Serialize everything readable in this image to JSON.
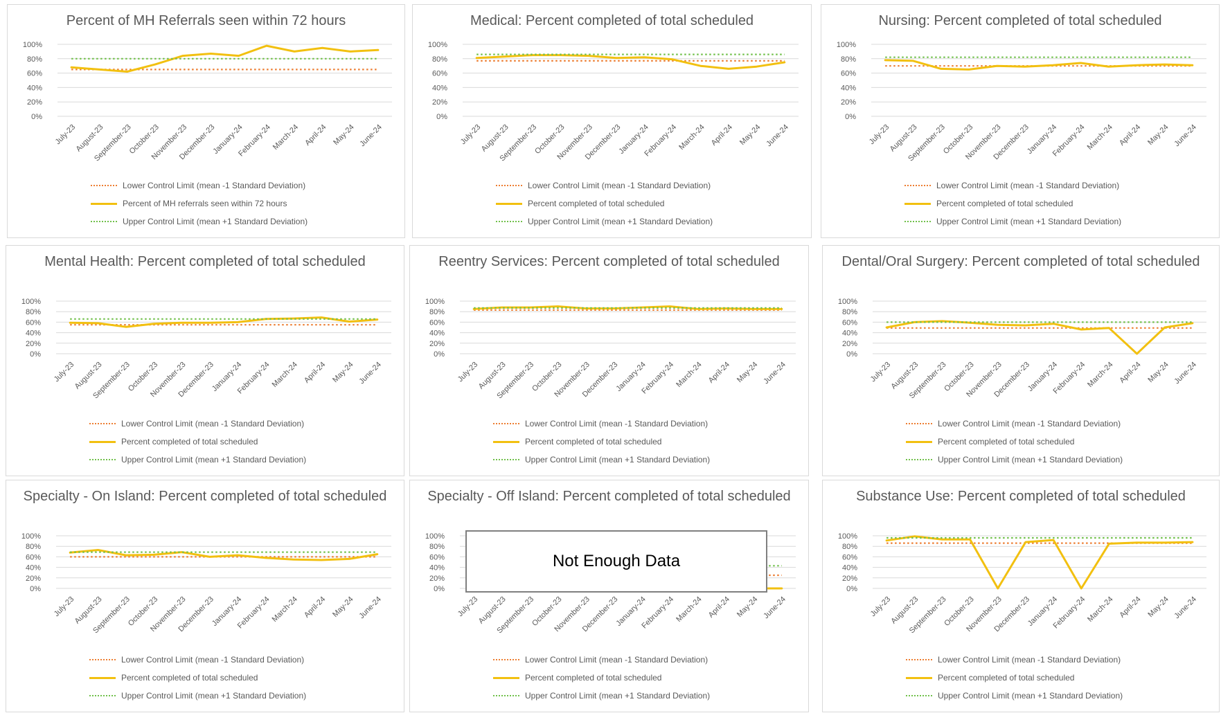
{
  "colors": {
    "actual": "#f2c010",
    "lcl": "#ed7d31",
    "ucl": "#70c04a",
    "grid": "#d9d9d9",
    "text": "#595959"
  },
  "months": [
    "July-23",
    "August-23",
    "September-23",
    "October-23",
    "November-23",
    "December-23",
    "January-24",
    "February-24",
    "March-24",
    "April-24",
    "May-24",
    "June-24"
  ],
  "y_ticks": [
    "100%",
    "80%",
    "60%",
    "40%",
    "20%",
    "0%"
  ],
  "chart_data": [
    {
      "type": "line",
      "title": "Percent of MH Referrals seen within 72 hours",
      "ylim": [
        0,
        100
      ],
      "series": [
        {
          "name": "Lower Control Limit (mean -1 Standard Deviation)",
          "values": [
            65,
            65,
            65,
            65,
            65,
            65,
            65,
            65,
            65,
            65,
            65,
            65
          ]
        },
        {
          "name": "Percent of MH referrals seen within 72 hours",
          "values": [
            68,
            65,
            62,
            72,
            84,
            87,
            84,
            98,
            90,
            95,
            90,
            92
          ]
        },
        {
          "name": "Upper Control Limit (mean +1 Standard Deviation)",
          "values": [
            80,
            80,
            80,
            80,
            80,
            80,
            80,
            80,
            80,
            80,
            80,
            80
          ]
        }
      ]
    },
    {
      "type": "line",
      "title": "Medical: Percent completed of total scheduled",
      "ylim": [
        0,
        100
      ],
      "series": [
        {
          "name": "Lower Control Limit (mean -1 Standard Deviation)",
          "values": [
            77,
            77,
            77,
            77,
            77,
            77,
            77,
            77,
            77,
            77,
            77,
            77
          ]
        },
        {
          "name": "Percent completed of total scheduled",
          "values": [
            81,
            83,
            85,
            85,
            84,
            81,
            82,
            79,
            70,
            66,
            69,
            75
          ]
        },
        {
          "name": "Upper Control Limit (mean +1 Standard Deviation)",
          "values": [
            86,
            86,
            86,
            86,
            86,
            86,
            86,
            86,
            86,
            86,
            86,
            86
          ]
        }
      ]
    },
    {
      "type": "line",
      "title": "Nursing: Percent completed of total scheduled",
      "ylim": [
        0,
        100
      ],
      "series": [
        {
          "name": "Lower Control Limit (mean -1 Standard Deviation)",
          "values": [
            70,
            70,
            70,
            70,
            70,
            70,
            70,
            70,
            70,
            70,
            70,
            70
          ]
        },
        {
          "name": "Percent completed of total scheduled",
          "values": [
            78,
            77,
            66,
            65,
            70,
            69,
            71,
            74,
            69,
            71,
            72,
            71
          ]
        },
        {
          "name": "Upper Control Limit (mean +1 Standard Deviation)",
          "values": [
            82,
            82,
            82,
            82,
            82,
            82,
            82,
            82,
            82,
            82,
            82,
            82
          ]
        }
      ]
    },
    {
      "type": "line",
      "title": "Mental Health: Percent completed of total scheduled",
      "ylim": [
        0,
        100
      ],
      "series": [
        {
          "name": "Lower Control Limit (mean -1 Standard Deviation)",
          "values": [
            55,
            55,
            55,
            55,
            55,
            55,
            55,
            55,
            55,
            55,
            55,
            55
          ]
        },
        {
          "name": "Percent completed of total scheduled",
          "values": [
            59,
            58,
            51,
            57,
            59,
            59,
            60,
            66,
            67,
            69,
            61,
            65
          ]
        },
        {
          "name": "Upper Control Limit (mean +1 Standard Deviation)",
          "values": [
            66,
            66,
            66,
            66,
            66,
            66,
            66,
            66,
            66,
            66,
            66,
            66
          ]
        }
      ]
    },
    {
      "type": "line",
      "title": "Reentry Services: Percent completed of total scheduled",
      "ylim": [
        0,
        100
      ],
      "series": [
        {
          "name": "Lower Control Limit (mean -1 Standard Deviation)",
          "values": [
            83,
            83,
            83,
            83,
            83,
            83,
            83,
            83,
            83,
            83,
            83,
            83
          ]
        },
        {
          "name": "Percent completed of total scheduled",
          "values": [
            85,
            88,
            88,
            90,
            86,
            86,
            88,
            90,
            85,
            86,
            85,
            85
          ]
        },
        {
          "name": "Upper Control Limit (mean +1 Standard Deviation)",
          "values": [
            87,
            87,
            87,
            87,
            87,
            87,
            87,
            87,
            87,
            87,
            87,
            87
          ]
        }
      ]
    },
    {
      "type": "line",
      "title": "Dental/Oral Surgery: Percent completed of total scheduled",
      "ylim": [
        0,
        100
      ],
      "series": [
        {
          "name": "Lower Control Limit (mean -1 Standard Deviation)",
          "values": [
            49,
            49,
            49,
            49,
            49,
            49,
            49,
            49,
            49,
            49,
            49,
            49
          ]
        },
        {
          "name": "Percent completed of total scheduled",
          "values": [
            50,
            60,
            62,
            59,
            55,
            54,
            57,
            46,
            49,
            0,
            50,
            58
          ]
        },
        {
          "name": "Upper Control Limit (mean +1 Standard Deviation)",
          "values": [
            60,
            60,
            60,
            60,
            60,
            60,
            60,
            60,
            60,
            60,
            60,
            60
          ]
        }
      ]
    },
    {
      "type": "line",
      "title": "Specialty - On Island: Percent completed of total scheduled",
      "ylim": [
        0,
        100
      ],
      "series": [
        {
          "name": "Lower Control Limit (mean -1 Standard Deviation)",
          "values": [
            60,
            60,
            60,
            60,
            60,
            60,
            60,
            60,
            60,
            60,
            60,
            60
          ]
        },
        {
          "name": "Percent completed of total scheduled",
          "values": [
            68,
            73,
            63,
            64,
            69,
            60,
            63,
            58,
            55,
            54,
            56,
            65
          ]
        },
        {
          "name": "Upper Control Limit (mean +1 Standard Deviation)",
          "values": [
            69,
            69,
            69,
            69,
            69,
            69,
            69,
            69,
            69,
            69,
            69,
            69
          ]
        }
      ]
    },
    {
      "type": "line",
      "title": "Specialty - Off Island: Percent completed of total scheduled",
      "ylim": [
        0,
        100
      ],
      "annotation": "Not Enough Data",
      "series": [
        {
          "name": "Lower Control Limit (mean -1 Standard Deviation)",
          "values": [
            25,
            25,
            25,
            25,
            25,
            25,
            25,
            25,
            25,
            25,
            25,
            25
          ]
        },
        {
          "name": "Percent completed of total scheduled",
          "values": [
            0,
            0,
            0,
            0,
            0,
            0,
            0,
            0,
            0,
            0,
            0,
            0
          ]
        },
        {
          "name": "Upper Control Limit (mean +1 Standard Deviation)",
          "values": [
            43,
            43,
            43,
            43,
            43,
            43,
            43,
            43,
            43,
            43,
            43,
            43
          ]
        }
      ]
    },
    {
      "type": "line",
      "title": "Substance Use: Percent completed of total scheduled",
      "ylim": [
        0,
        100
      ],
      "series": [
        {
          "name": "Lower Control Limit (mean -1 Standard Deviation)",
          "values": [
            86,
            86,
            86,
            86,
            86,
            86,
            86,
            86,
            86,
            86,
            86,
            86
          ]
        },
        {
          "name": "Percent completed of total scheduled",
          "values": [
            91,
            99,
            93,
            93,
            0,
            88,
            92,
            0,
            85,
            87,
            87,
            88
          ]
        },
        {
          "name": "Upper Control Limit (mean +1 Standard Deviation)",
          "values": [
            96,
            96,
            96,
            96,
            96,
            96,
            96,
            96,
            96,
            96,
            96,
            96
          ]
        }
      ]
    }
  ]
}
